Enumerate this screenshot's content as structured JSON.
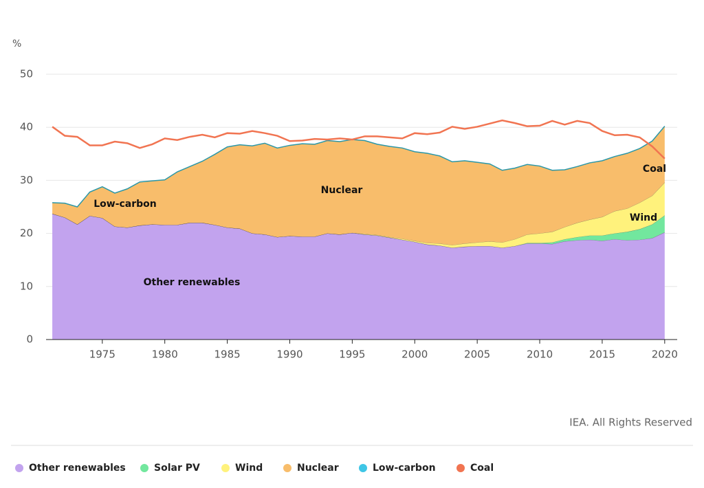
{
  "chart_data": {
    "type": "stacked_area",
    "y_label": "%",
    "source": "IEA. All Rights Reserved",
    "x": [
      1971,
      1972,
      1973,
      1974,
      1975,
      1976,
      1977,
      1978,
      1979,
      1980,
      1981,
      1982,
      1983,
      1984,
      1985,
      1986,
      1987,
      1988,
      1989,
      1990,
      1991,
      1992,
      1993,
      1994,
      1995,
      1996,
      1997,
      1998,
      1999,
      2000,
      2001,
      2002,
      2003,
      2004,
      2005,
      2006,
      2007,
      2008,
      2009,
      2010,
      2011,
      2012,
      2013,
      2014,
      2015,
      2016,
      2017,
      2018,
      2019,
      2020
    ],
    "xlim": [
      1970.5,
      2021
    ],
    "xticks": [
      1975,
      1980,
      1985,
      1990,
      1995,
      2000,
      2005,
      2010,
      2015,
      2020
    ],
    "ylim": [
      0,
      50
    ],
    "yticks": [
      0,
      10,
      20,
      30,
      40,
      50
    ],
    "grid": true,
    "series": [
      {
        "name": "Other renewables",
        "color": "#c2a3ee",
        "kind": "area",
        "values": [
          23.7,
          23.0,
          21.7,
          23.3,
          22.9,
          21.3,
          21.1,
          21.5,
          21.7,
          21.6,
          21.6,
          22.0,
          22.0,
          21.6,
          21.1,
          20.9,
          20.0,
          19.8,
          19.3,
          19.5,
          19.4,
          19.4,
          20.0,
          19.8,
          20.1,
          19.8,
          19.6,
          19.2,
          18.8,
          18.4,
          17.9,
          17.7,
          17.3,
          17.5,
          17.6,
          17.6,
          17.3,
          17.6,
          18.1,
          18.1,
          18.0,
          18.5,
          18.7,
          18.8,
          18.6,
          18.9,
          18.7,
          18.8,
          19.1,
          20.2
        ]
      },
      {
        "name": "Solar PV",
        "color": "#72e79e",
        "kind": "area",
        "values": [
          0,
          0,
          0,
          0,
          0,
          0,
          0,
          0,
          0,
          0,
          0,
          0,
          0,
          0,
          0,
          0,
          0,
          0,
          0,
          0,
          0,
          0,
          0,
          0,
          0,
          0,
          0,
          0,
          0,
          0,
          0,
          0,
          0,
          0,
          0,
          0,
          0,
          0,
          0.1,
          0.1,
          0.3,
          0.4,
          0.6,
          0.8,
          1.0,
          1.1,
          1.6,
          2.0,
          2.6,
          3.2
        ]
      },
      {
        "name": "Wind",
        "color": "#fff27c",
        "kind": "area",
        "values": [
          0,
          0,
          0,
          0,
          0,
          0,
          0,
          0,
          0,
          0,
          0,
          0,
          0,
          0,
          0,
          0,
          0,
          0,
          0,
          0,
          0,
          0,
          0,
          0,
          0,
          0.1,
          0.1,
          0.1,
          0.2,
          0.2,
          0.3,
          0.4,
          0.5,
          0.6,
          0.7,
          0.9,
          1.0,
          1.3,
          1.6,
          1.8,
          2.0,
          2.3,
          2.7,
          3.0,
          3.5,
          4.2,
          4.4,
          5.0,
          5.4,
          6.2
        ]
      },
      {
        "name": "Nuclear",
        "color": "#f8bd6b",
        "kind": "area",
        "values": [
          2.1,
          2.7,
          3.3,
          4.5,
          5.9,
          6.3,
          7.3,
          8.2,
          8.2,
          8.5,
          10.0,
          10.6,
          11.6,
          13.3,
          15.2,
          15.8,
          16.5,
          17.2,
          16.8,
          17.1,
          17.5,
          17.4,
          17.5,
          17.5,
          17.6,
          17.6,
          17.1,
          17.1,
          17.1,
          16.8,
          16.9,
          16.5,
          15.7,
          15.6,
          15.1,
          14.6,
          13.6,
          13.4,
          13.2,
          12.7,
          11.6,
          10.8,
          10.6,
          10.7,
          10.6,
          10.3,
          10.4,
          10.2,
          10.3,
          10.6
        ]
      },
      {
        "name": "Low-carbon",
        "color": "#3fc6e6",
        "kind": "line",
        "values": [
          25.8,
          25.7,
          25.0,
          27.8,
          28.8,
          27.6,
          28.4,
          29.7,
          29.9,
          30.1,
          31.6,
          32.6,
          33.6,
          34.9,
          36.3,
          36.7,
          36.5,
          37.0,
          36.1,
          36.6,
          36.9,
          36.8,
          37.5,
          37.3,
          37.7,
          37.5,
          36.8,
          36.4,
          36.1,
          35.4,
          35.1,
          34.6,
          33.5,
          33.7,
          33.4,
          33.1,
          31.9,
          32.3,
          33.0,
          32.7,
          31.9,
          32.0,
          32.6,
          33.3,
          33.7,
          34.5,
          35.1,
          36.0,
          37.4,
          40.2
        ]
      },
      {
        "name": "Coal",
        "color": "#f17451",
        "kind": "line",
        "values": [
          40.1,
          38.4,
          38.2,
          36.6,
          36.6,
          37.3,
          37.0,
          36.1,
          36.8,
          37.9,
          37.6,
          38.2,
          38.6,
          38.1,
          38.9,
          38.8,
          39.3,
          38.9,
          38.4,
          37.4,
          37.5,
          37.8,
          37.7,
          37.9,
          37.7,
          38.3,
          38.3,
          38.1,
          37.9,
          38.9,
          38.7,
          39.0,
          40.1,
          39.7,
          40.1,
          40.7,
          41.3,
          40.8,
          40.2,
          40.3,
          41.2,
          40.5,
          41.2,
          40.8,
          39.3,
          38.5,
          38.6,
          38.1,
          36.4,
          34.1
        ]
      }
    ],
    "annotations": [
      "Low-carbon",
      "Nuclear",
      "Coal",
      "Wind",
      "Other renewables"
    ]
  }
}
